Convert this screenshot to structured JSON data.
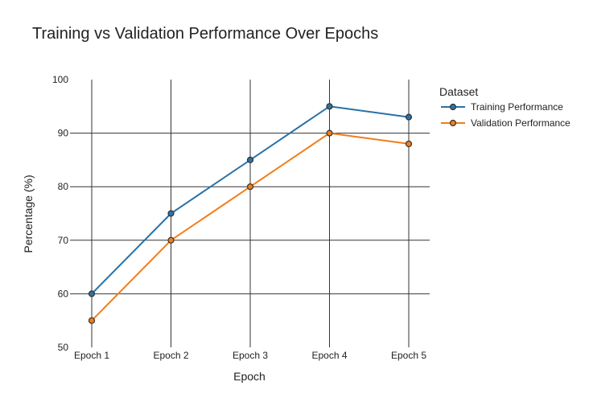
{
  "chart_data": {
    "type": "line",
    "title": "Training vs Validation Performance Over Epochs",
    "xlabel": "Epoch",
    "ylabel": "Percentage (%)",
    "categories": [
      "Epoch 1",
      "Epoch 2",
      "Epoch 3",
      "Epoch 4",
      "Epoch 5"
    ],
    "ylim": [
      50,
      100
    ],
    "yticks": [
      50,
      60,
      70,
      80,
      90,
      100
    ],
    "grid": true,
    "legend": {
      "title": "Dataset",
      "placement": "top-right"
    },
    "series": [
      {
        "name": "Training Performance",
        "color": "#2a72a6",
        "values": [
          60,
          75,
          85,
          95,
          93
        ]
      },
      {
        "name": "Validation Performance",
        "color": "#f07e1c",
        "values": [
          55,
          70,
          80,
          90,
          88
        ]
      }
    ]
  }
}
